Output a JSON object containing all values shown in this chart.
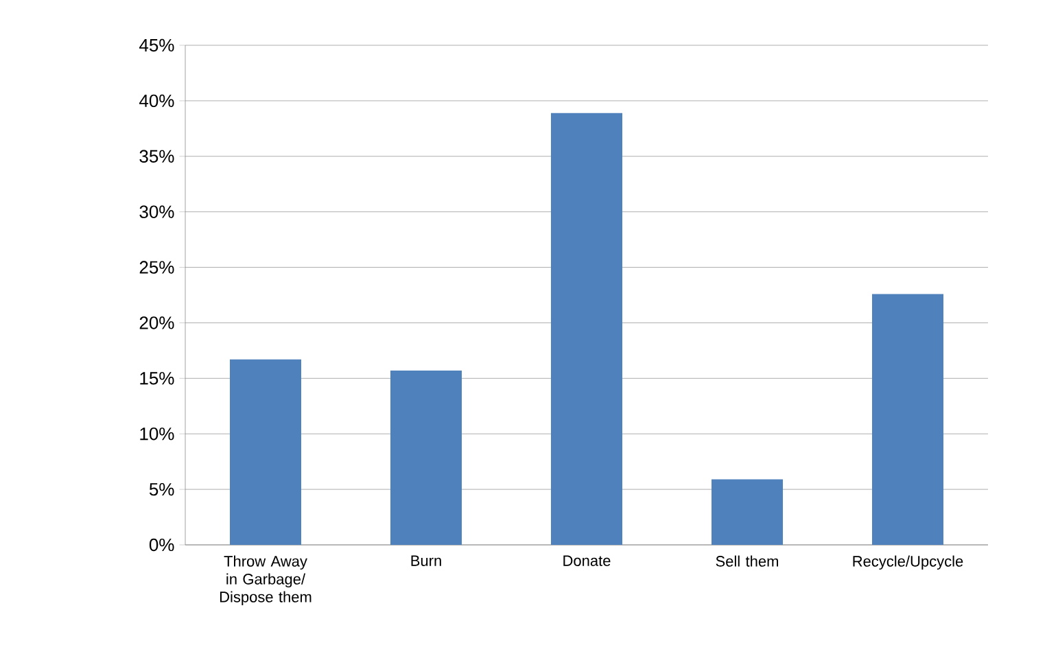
{
  "chart_data": {
    "type": "bar",
    "categories": [
      "Throw Away in Garbage/ Dispose them",
      "Burn",
      "Donate",
      "Sell them",
      "Recycle/Upcycle"
    ],
    "values": [
      16.7,
      15.7,
      38.9,
      5.9,
      22.6
    ],
    "color": "#4f81bd",
    "ylim": [
      0,
      45
    ],
    "yticks": [
      {
        "value": 0,
        "label": "0%"
      },
      {
        "value": 5,
        "label": "5%"
      },
      {
        "value": 10,
        "label": "10%"
      },
      {
        "value": 15,
        "label": "15%"
      },
      {
        "value": 20,
        "label": "20%"
      },
      {
        "value": 25,
        "label": "25%"
      },
      {
        "value": 30,
        "label": "30%"
      },
      {
        "value": 35,
        "label": "35%"
      },
      {
        "value": 40,
        "label": "40%"
      },
      {
        "value": 45,
        "label": "45%"
      }
    ],
    "grid": "y"
  }
}
